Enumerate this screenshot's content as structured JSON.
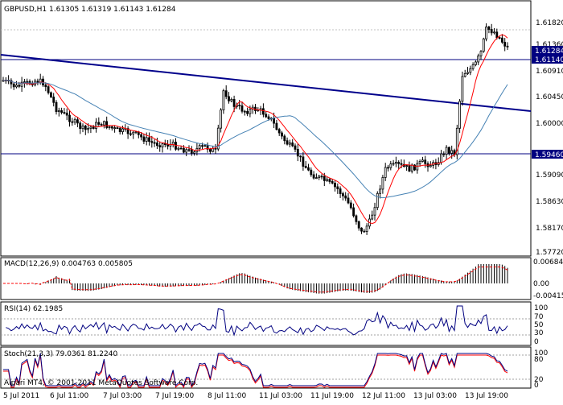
{
  "main_chart": {
    "header": "GBPUSD,H1  1.61305 1.61319 1.61143 1.61284",
    "price_ticks": [
      "1.61820",
      "1.61360",
      "1.60910",
      "1.60450",
      "1.60000",
      "1.59090",
      "1.58630",
      "1.58170",
      "1.57720"
    ],
    "current_price": "1.61284",
    "hline_upper_label": "1.61140",
    "hline_lower_label": "1.59460"
  },
  "macd": {
    "header": "MACD(12,26,9) 0.004763 0.005805",
    "ticks": [
      "0.006849",
      "0.00",
      "-0.00415"
    ]
  },
  "rsi": {
    "header": "RSI(14) 62.1985",
    "ticks": [
      "100",
      "70",
      "50",
      "30",
      "0"
    ]
  },
  "stoch": {
    "header": "Stoch(21,3,3) 79.0361 81.2240",
    "ticks": [
      "100",
      "80",
      "20",
      "0"
    ]
  },
  "copyright": "Alpari MT4, © 2001-2011 MetaQuotes Software Corp.",
  "time_axis": [
    "5 Jul 2011",
    "6 Jul 11:00",
    "7 Jul 03:00",
    "7 Jul 19:00",
    "8 Jul 11:00",
    "11 Jul 03:00",
    "11 Jul 19:00",
    "12 Jul 11:00",
    "13 Jul 03:00",
    "13 Jul 19:00"
  ],
  "colors": {
    "candles": "#000000",
    "ma_fast": "#ff0000",
    "ma_slow": "#4682b4",
    "trendline": "#00008b",
    "hline": "#000080",
    "price_label_bg": "#000080",
    "macd_signal": "#ff0000",
    "rsi_line": "#000080",
    "stoch_main": "#000080",
    "stoch_signal": "#ff0000"
  }
}
